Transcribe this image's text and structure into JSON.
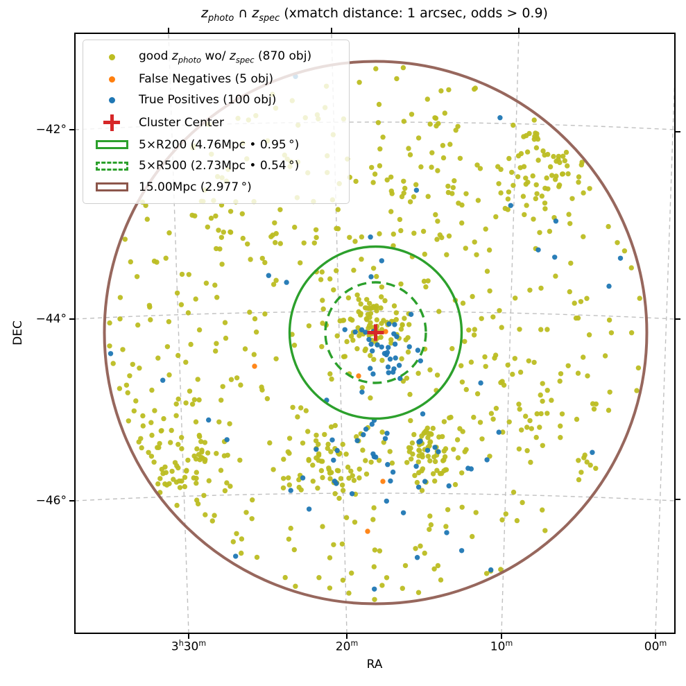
{
  "title": {
    "text": "z_photo ∩ z_spec (xmatch distance: 1 arcsec, odds > 0.9)",
    "parts": [
      {
        "t": "z",
        "i": true
      },
      {
        "t": "photo",
        "i": true,
        "sub": true
      },
      {
        "t": " ∩ "
      },
      {
        "t": "z",
        "i": true
      },
      {
        "t": "spec",
        "i": true,
        "sub": true
      },
      {
        "t": " (xmatch distance: 1 arcsec, odds > 0.9)"
      }
    ]
  },
  "axes": {
    "x_label": "RA",
    "y_label": "DEC",
    "x_tick_parts": [
      [
        {
          "t": "3"
        },
        {
          "t": "h",
          "sup": true
        },
        {
          "t": "30"
        },
        {
          "t": "m",
          "sup": true
        }
      ],
      [
        {
          "t": "20"
        },
        {
          "t": "m",
          "sup": true
        }
      ],
      [
        {
          "t": "10"
        },
        {
          "t": "m",
          "sup": true
        }
      ],
      [
        {
          "t": "00"
        },
        {
          "t": "m",
          "sup": true
        }
      ]
    ],
    "y_tick_labels": [
      "−42°",
      "−44°",
      "−46°"
    ]
  },
  "legend": {
    "items": [
      {
        "key": "good-zphoto",
        "marker": "dot",
        "color": "#bcbd22",
        "label_parts": [
          {
            "t": "good "
          },
          {
            "t": "z",
            "i": true
          },
          {
            "t": "photo",
            "i": true,
            "sub": true
          },
          {
            "t": " wo/ "
          },
          {
            "t": "z",
            "i": true
          },
          {
            "t": "spec",
            "i": true,
            "sub": true
          },
          {
            "t": " (870 obj)"
          }
        ]
      },
      {
        "key": "false-negatives",
        "marker": "dot",
        "color": "#ff7f0e",
        "label_parts": [
          {
            "t": "False Negatives (5 obj)"
          }
        ]
      },
      {
        "key": "true-positives",
        "marker": "dot",
        "color": "#1f77b4",
        "label_parts": [
          {
            "t": "True Positives (100 obj)"
          }
        ]
      },
      {
        "key": "cluster-center",
        "marker": "plus",
        "color": "#d62728",
        "label_parts": [
          {
            "t": "Cluster Center"
          }
        ]
      },
      {
        "key": "r200",
        "marker": "rect-solid",
        "color": "#2ca02c",
        "label_parts": [
          {
            "t": "5×R200 (4.76Mpc • 0.95 °)"
          }
        ]
      },
      {
        "key": "r500",
        "marker": "rect-dashed",
        "color": "#2ca02c",
        "label_parts": [
          {
            "t": "5×R500 (2.73Mpc • 0.54 °)"
          }
        ]
      },
      {
        "key": "mpc15",
        "marker": "rect-solid",
        "color": "#8c564b",
        "label_parts": [
          {
            "t": "15.00Mpc (2.977 °)"
          }
        ]
      }
    ]
  },
  "chart_data": {
    "type": "scatter",
    "title": "z_photo ∩ z_spec (xmatch distance: 1 arcsec, odds > 0.9)",
    "xlabel": "RA",
    "ylabel": "DEC",
    "x_tick_labels": [
      "3h30m",
      "20m",
      "10m",
      "00m"
    ],
    "y_tick_labels": [
      "−42°",
      "−44°",
      "−46°"
    ],
    "grid": true,
    "legend_position": "upper left",
    "series": [
      {
        "name": "good z_photo wo/ z_spec",
        "count": 870,
        "color": "#bcbd22",
        "marker": "dot"
      },
      {
        "name": "False Negatives",
        "count": 5,
        "color": "#ff7f0e",
        "marker": "dot"
      },
      {
        "name": "True Positives",
        "count": 100,
        "color": "#1f77b4",
        "marker": "dot"
      },
      {
        "name": "Cluster Center",
        "count": 1,
        "color": "#d62728",
        "marker": "plus"
      }
    ],
    "circles": [
      {
        "label": "5×R200",
        "radius_mpc": 4.76,
        "radius_deg": 0.95,
        "line_style": "solid",
        "color": "#2ca02c"
      },
      {
        "label": "5×R500",
        "radius_mpc": 2.73,
        "radius_deg": 0.54,
        "line_style": "dashed",
        "color": "#2ca02c"
      },
      {
        "label": "15.00Mpc",
        "radius_mpc": 15.0,
        "radius_deg": 2.977,
        "line_style": "solid",
        "color": "#8c564b"
      }
    ]
  },
  "colors": {
    "background": "#ffffff",
    "grid": "#c0c0c0",
    "axis": "#000000",
    "good": "#bcbd22",
    "false_negative": "#ff7f0e",
    "true_positive": "#1f77b4",
    "cluster_center": "#d62728",
    "green_circle": "#2ca02c",
    "brown_circle": "#8c564b"
  }
}
